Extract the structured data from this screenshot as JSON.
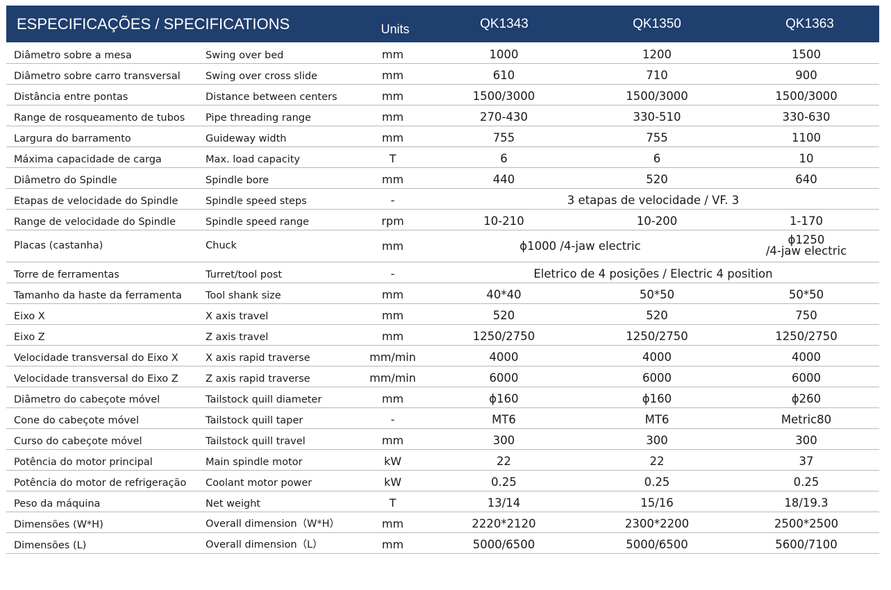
{
  "header": {
    "title": "ESPECIFICAÇÕES / SPECIFICATIONS",
    "units": "Units",
    "models": [
      "QK1343",
      "QK1350",
      "QK1363"
    ]
  },
  "colors": {
    "header_bg": "#1f3f6e",
    "header_text": "#ffffff",
    "rule": "#b8b8b8"
  },
  "rows": [
    {
      "pt": "Diâmetro sobre a mesa",
      "en": "Swing over bed",
      "unit": "mm",
      "v1": "1000",
      "v2": "1200",
      "v3": "1500"
    },
    {
      "pt": "Diâmetro sobre carro transversal",
      "en": "Swing over cross slide",
      "unit": "mm",
      "v1": "610",
      "v2": "710",
      "v3": "900"
    },
    {
      "pt": "Distância entre pontas",
      "en": "Distance between centers",
      "unit": "mm",
      "v1": "1500/3000",
      "v2": "1500/3000",
      "v3": "1500/3000"
    },
    {
      "pt": "Range de rosqueamento de tubos",
      "en": "Pipe threading range",
      "unit": "mm",
      "v1": "270-430",
      "v2": "330-510",
      "v3": "330-630"
    },
    {
      "pt": "Largura do barramento",
      "en": "Guideway width",
      "unit": "mm",
      "v1": "755",
      "v2": "755",
      "v3": "1100"
    },
    {
      "pt": "Máxima capacidade de carga",
      "en": "Max. load capacity",
      "unit": "T",
      "v1": "6",
      "v2": "6",
      "v3": "10"
    },
    {
      "pt": "Diâmetro do Spindle",
      "en": "Spindle bore",
      "unit": "mm",
      "v1": "440",
      "v2": "520",
      "v3": "640"
    },
    {
      "pt": "Etapas de velocidade do Spindle",
      "en": "Spindle speed steps",
      "unit": "-",
      "span": "3 etapas de velocidade / VF. 3"
    },
    {
      "pt": "Range de velocidade do Spindle",
      "en": "Spindle speed range",
      "unit": "rpm",
      "v1": "10-210",
      "v2": "10-200",
      "v3": "1-170"
    },
    {
      "pt": "Placas (castanha)",
      "en": "Chuck",
      "unit": "mm",
      "span2": "ϕ1000 /4-jaw electric",
      "v3a": "ϕ1250",
      "v3b": "/4-jaw electric"
    },
    {
      "pt": "Torre de ferramentas",
      "en": "Turret/tool post",
      "unit": "-",
      "span": "Eletrico de 4 posições / Electric 4 position"
    },
    {
      "pt": "Tamanho da haste da ferramenta",
      "en": "Tool shank size",
      "unit": "mm",
      "v1": "40*40",
      "v2": "50*50",
      "v3": "50*50"
    },
    {
      "pt": "Eixo X",
      "en": "X axis travel",
      "unit": "mm",
      "v1": "520",
      "v2": "520",
      "v3": "750"
    },
    {
      "pt": "Eixo Z",
      "en": "Z axis travel",
      "unit": "mm",
      "v1": "1250/2750",
      "v2": "1250/2750",
      "v3": "1250/2750"
    },
    {
      "pt": "Velocidade transversal do Eixo X",
      "en": "X axis rapid traverse",
      "unit": "mm/min",
      "v1": "4000",
      "v2": "4000",
      "v3": "4000"
    },
    {
      "pt": "Velocidade transversal do Eixo Z",
      "en": "Z axis rapid traverse",
      "unit": "mm/min",
      "v1": "6000",
      "v2": "6000",
      "v3": "6000"
    },
    {
      "pt": "Diâmetro do cabeçote móvel",
      "en": "Tailstock quill diameter",
      "unit": "mm",
      "v1": "ϕ160",
      "v2": "ϕ160",
      "v3": "ϕ260"
    },
    {
      "pt": "Cone do cabeçote móvel",
      "en": "Tailstock quill taper",
      "unit": "-",
      "v1": "MT6",
      "v2": "MT6",
      "v3": "Metric80"
    },
    {
      "pt": "Curso do cabeçote móvel",
      "en": "Tailstock quill travel",
      "unit": "mm",
      "v1": "300",
      "v2": "300",
      "v3": "300"
    },
    {
      "pt": "Potência do motor principal",
      "en": "Main spindle motor",
      "unit": "kW",
      "v1": "22",
      "v2": "22",
      "v3": "37"
    },
    {
      "pt": "Potência do motor de refrigeração",
      "en": "Coolant motor power",
      "unit": "kW",
      "v1": "0.25",
      "v2": "0.25",
      "v3": "0.25"
    },
    {
      "pt": "Peso da máquina",
      "en": "Net weight",
      "unit": "T",
      "v1": "13/14",
      "v2": "15/16",
      "v3": "18/19.3"
    },
    {
      "pt": "Dimensões (W*H)",
      "en": "Overall dimension（W*H）",
      "unit": "mm",
      "v1": "2220*2120",
      "v2": "2300*2200",
      "v3": "2500*2500"
    },
    {
      "pt": "Dimensões (L)",
      "en": "Overall dimension（L）",
      "unit": "mm",
      "v1": "5000/6500",
      "v2": "5000/6500",
      "v3": "5600/7100"
    }
  ]
}
